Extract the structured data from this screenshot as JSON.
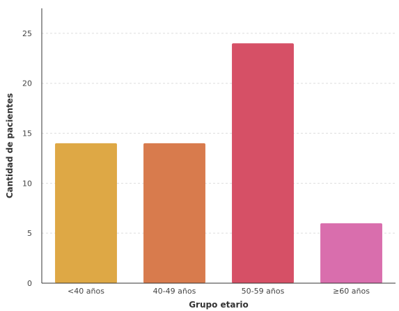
{
  "chart_data": {
    "type": "bar",
    "title": "",
    "xlabel": "Grupo etario",
    "ylabel": "Cantidad de pacientes",
    "categories": [
      "<40 años",
      "40-49 años",
      "50-59 años",
      "≥60 años"
    ],
    "values": [
      14,
      14,
      24,
      6
    ],
    "colors": [
      "#DEA845",
      "#D87B4D",
      "#D65066",
      "#D96EAD"
    ],
    "ylim": [
      0,
      27.5
    ],
    "yticks": [
      0,
      5,
      10,
      15,
      20,
      25
    ],
    "grid": true,
    "legend": "none"
  }
}
